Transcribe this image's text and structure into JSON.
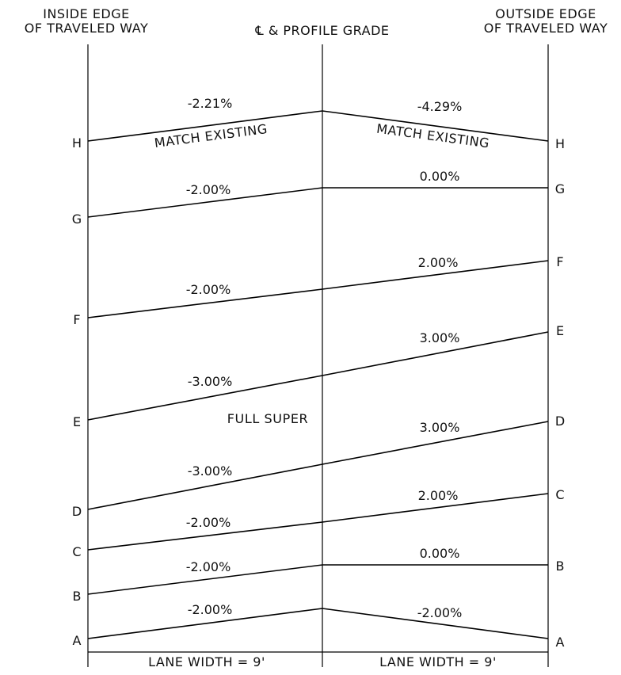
{
  "headers": {
    "inside_line1": "INSIDE EDGE",
    "inside_line2": "OF TRAVELED WAY",
    "center": "℄ & PROFILE GRADE",
    "outside_line1": "OUTSIDE EDGE",
    "outside_line2": "OF TRAVELED WAY"
  },
  "rows": [
    {
      "label": "H",
      "left_slope": "-2.21%",
      "right_slope": "-4.29%"
    },
    {
      "label": "G",
      "left_slope": "-2.00%",
      "right_slope": "0.00%"
    },
    {
      "label": "F",
      "left_slope": "-2.00%",
      "right_slope": "2.00%"
    },
    {
      "label": "E",
      "left_slope": "-3.00%",
      "right_slope": "3.00%"
    },
    {
      "label": "D",
      "left_slope": "-3.00%",
      "right_slope": "3.00%"
    },
    {
      "label": "C",
      "left_slope": "-2.00%",
      "right_slope": "2.00%"
    },
    {
      "label": "B",
      "left_slope": "-2.00%",
      "right_slope": "0.00%"
    },
    {
      "label": "A",
      "left_slope": "-2.00%",
      "right_slope": "-2.00%"
    }
  ],
  "notes": {
    "match_existing_left": "MATCH EXISTING",
    "match_existing_right": "MATCH EXISTING",
    "full_super": "FULL SUPER"
  },
  "footer": {
    "left_lane": "LANE WIDTH = 9'",
    "right_lane": "LANE WIDTH = 9'"
  }
}
